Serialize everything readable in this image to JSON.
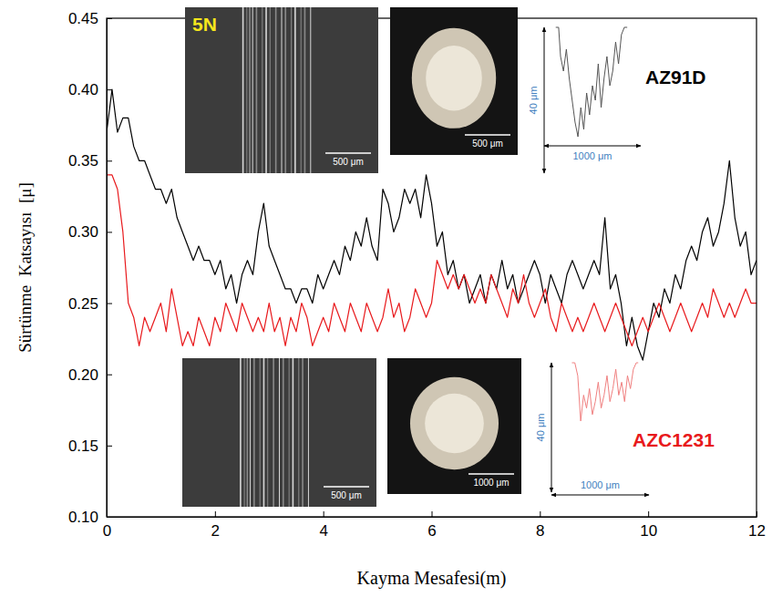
{
  "chart_data": {
    "type": "line",
    "x_label": "Kayma Mesafesi(m)",
    "y_label": "Sürtünme  Katsayısı  [μ]",
    "x": [
      0,
      0.1,
      0.2,
      0.3,
      0.4,
      0.5,
      0.6,
      0.7,
      0.8,
      0.9,
      1,
      1.1,
      1.2,
      1.3,
      1.4,
      1.5,
      1.6,
      1.7,
      1.8,
      1.9,
      2,
      2.1,
      2.2,
      2.3,
      2.4,
      2.5,
      2.6,
      2.7,
      2.8,
      2.9,
      3,
      3.1,
      3.2,
      3.3,
      3.4,
      3.5,
      3.6,
      3.7,
      3.8,
      3.9,
      4,
      4.1,
      4.2,
      4.3,
      4.4,
      4.5,
      4.6,
      4.7,
      4.8,
      4.9,
      5,
      5.1,
      5.2,
      5.3,
      5.4,
      5.5,
      5.6,
      5.7,
      5.8,
      5.9,
      6,
      6.1,
      6.2,
      6.3,
      6.4,
      6.5,
      6.6,
      6.7,
      6.8,
      6.9,
      7,
      7.1,
      7.2,
      7.3,
      7.4,
      7.5,
      7.6,
      7.7,
      7.8,
      7.9,
      8,
      8.1,
      8.2,
      8.3,
      8.4,
      8.5,
      8.6,
      8.7,
      8.8,
      8.9,
      9,
      9.1,
      9.2,
      9.3,
      9.4,
      9.5,
      9.6,
      9.7,
      9.8,
      9.9,
      10,
      10.1,
      10.2,
      10.3,
      10.4,
      10.5,
      10.6,
      10.7,
      10.8,
      10.9,
      11,
      11.1,
      11.2,
      11.3,
      11.4,
      11.5,
      11.6,
      11.7,
      11.8,
      11.9,
      12
    ],
    "series": [
      {
        "name": "AZ91D",
        "color": "#000000",
        "values": [
          0.37,
          0.4,
          0.37,
          0.38,
          0.38,
          0.36,
          0.35,
          0.35,
          0.34,
          0.33,
          0.33,
          0.32,
          0.33,
          0.31,
          0.3,
          0.29,
          0.28,
          0.29,
          0.28,
          0.28,
          0.27,
          0.28,
          0.26,
          0.27,
          0.25,
          0.27,
          0.28,
          0.27,
          0.3,
          0.32,
          0.29,
          0.28,
          0.27,
          0.26,
          0.26,
          0.25,
          0.26,
          0.26,
          0.25,
          0.27,
          0.26,
          0.27,
          0.28,
          0.27,
          0.29,
          0.28,
          0.3,
          0.29,
          0.31,
          0.29,
          0.28,
          0.33,
          0.32,
          0.3,
          0.31,
          0.33,
          0.32,
          0.33,
          0.31,
          0.34,
          0.32,
          0.29,
          0.3,
          0.27,
          0.28,
          0.26,
          0.27,
          0.25,
          0.26,
          0.27,
          0.25,
          0.27,
          0.26,
          0.28,
          0.26,
          0.27,
          0.25,
          0.26,
          0.27,
          0.28,
          0.27,
          0.25,
          0.27,
          0.26,
          0.25,
          0.27,
          0.28,
          0.27,
          0.26,
          0.27,
          0.28,
          0.27,
          0.31,
          0.26,
          0.27,
          0.25,
          0.22,
          0.24,
          0.22,
          0.21,
          0.23,
          0.25,
          0.24,
          0.26,
          0.25,
          0.27,
          0.26,
          0.28,
          0.29,
          0.28,
          0.3,
          0.31,
          0.29,
          0.3,
          0.32,
          0.35,
          0.31,
          0.29,
          0.3,
          0.27,
          0.28
        ]
      },
      {
        "name": "AZC1231",
        "color": "#e8191c",
        "values": [
          0.34,
          0.34,
          0.33,
          0.3,
          0.25,
          0.24,
          0.22,
          0.24,
          0.23,
          0.24,
          0.25,
          0.23,
          0.26,
          0.24,
          0.22,
          0.23,
          0.22,
          0.24,
          0.23,
          0.22,
          0.24,
          0.23,
          0.25,
          0.24,
          0.23,
          0.25,
          0.24,
          0.23,
          0.24,
          0.23,
          0.25,
          0.23,
          0.24,
          0.22,
          0.24,
          0.23,
          0.25,
          0.24,
          0.22,
          0.23,
          0.24,
          0.23,
          0.25,
          0.24,
          0.23,
          0.25,
          0.24,
          0.23,
          0.25,
          0.24,
          0.23,
          0.24,
          0.26,
          0.24,
          0.25,
          0.23,
          0.24,
          0.26,
          0.25,
          0.24,
          0.25,
          0.28,
          0.27,
          0.26,
          0.27,
          0.26,
          0.27,
          0.26,
          0.25,
          0.26,
          0.25,
          0.27,
          0.26,
          0.25,
          0.24,
          0.26,
          0.25,
          0.27,
          0.25,
          0.24,
          0.25,
          0.26,
          0.24,
          0.23,
          0.25,
          0.24,
          0.23,
          0.24,
          0.23,
          0.24,
          0.25,
          0.24,
          0.23,
          0.24,
          0.25,
          0.24,
          0.23,
          0.22,
          0.23,
          0.24,
          0.23,
          0.24,
          0.25,
          0.24,
          0.23,
          0.24,
          0.25,
          0.24,
          0.23,
          0.24,
          0.25,
          0.24,
          0.26,
          0.25,
          0.24,
          0.25,
          0.24,
          0.25,
          0.26,
          0.25,
          0.25
        ]
      }
    ],
    "xlim": [
      0,
      12
    ],
    "ylim": [
      0.1,
      0.45
    ],
    "xticks": [
      0,
      2,
      4,
      6,
      8,
      10,
      12
    ],
    "yticks": [
      {
        "value": 0.1,
        "label": "0.10"
      },
      0.15,
      {
        "value": 0.2,
        "label": "0.20"
      },
      0.25,
      {
        "value": 0.3,
        "label": "0.30"
      },
      0.35,
      {
        "value": 0.4,
        "label": "0.40"
      },
      0.45
    ],
    "grid": false,
    "insets": [
      {
        "type": "sem",
        "label": "5N",
        "scale_label": "500 μm"
      },
      {
        "type": "optical",
        "scale_label": "500 μm"
      },
      {
        "type": "profile",
        "color": "#555555",
        "depth_label": "40 μm",
        "width_label": "1000 μm",
        "xlim": [
          0,
          1000
        ],
        "ylim": [
          0,
          40
        ],
        "x": [
          120,
          150,
          170,
          200,
          230,
          260,
          290,
          320,
          350,
          380,
          410,
          440,
          470,
          500,
          530,
          560,
          590,
          620,
          650,
          680,
          710,
          740,
          770,
          800,
          830,
          860
        ],
        "values": [
          0,
          0,
          8,
          12,
          6,
          14,
          20,
          26,
          30,
          22,
          28,
          18,
          24,
          16,
          20,
          10,
          22,
          14,
          8,
          16,
          12,
          4,
          10,
          2,
          0,
          0
        ]
      },
      {
        "type": "sem",
        "scale_label": "500 μm"
      },
      {
        "type": "optical",
        "scale_label": "1000 μm"
      },
      {
        "type": "profile",
        "color": "#f08080",
        "depth_label": "40 μm",
        "width_label": "1000 μm",
        "xlim": [
          0,
          1000
        ],
        "ylim": [
          0,
          40
        ],
        "x": [
          210,
          240,
          270,
          300,
          330,
          360,
          390,
          420,
          450,
          480,
          510,
          540,
          570,
          600,
          630,
          660,
          690,
          720,
          750,
          780,
          810,
          840,
          870,
          890
        ],
        "values": [
          0,
          0,
          4,
          18,
          10,
          14,
          8,
          16,
          12,
          6,
          14,
          10,
          4,
          12,
          8,
          2,
          10,
          6,
          12,
          4,
          8,
          2,
          0,
          0
        ]
      }
    ]
  }
}
